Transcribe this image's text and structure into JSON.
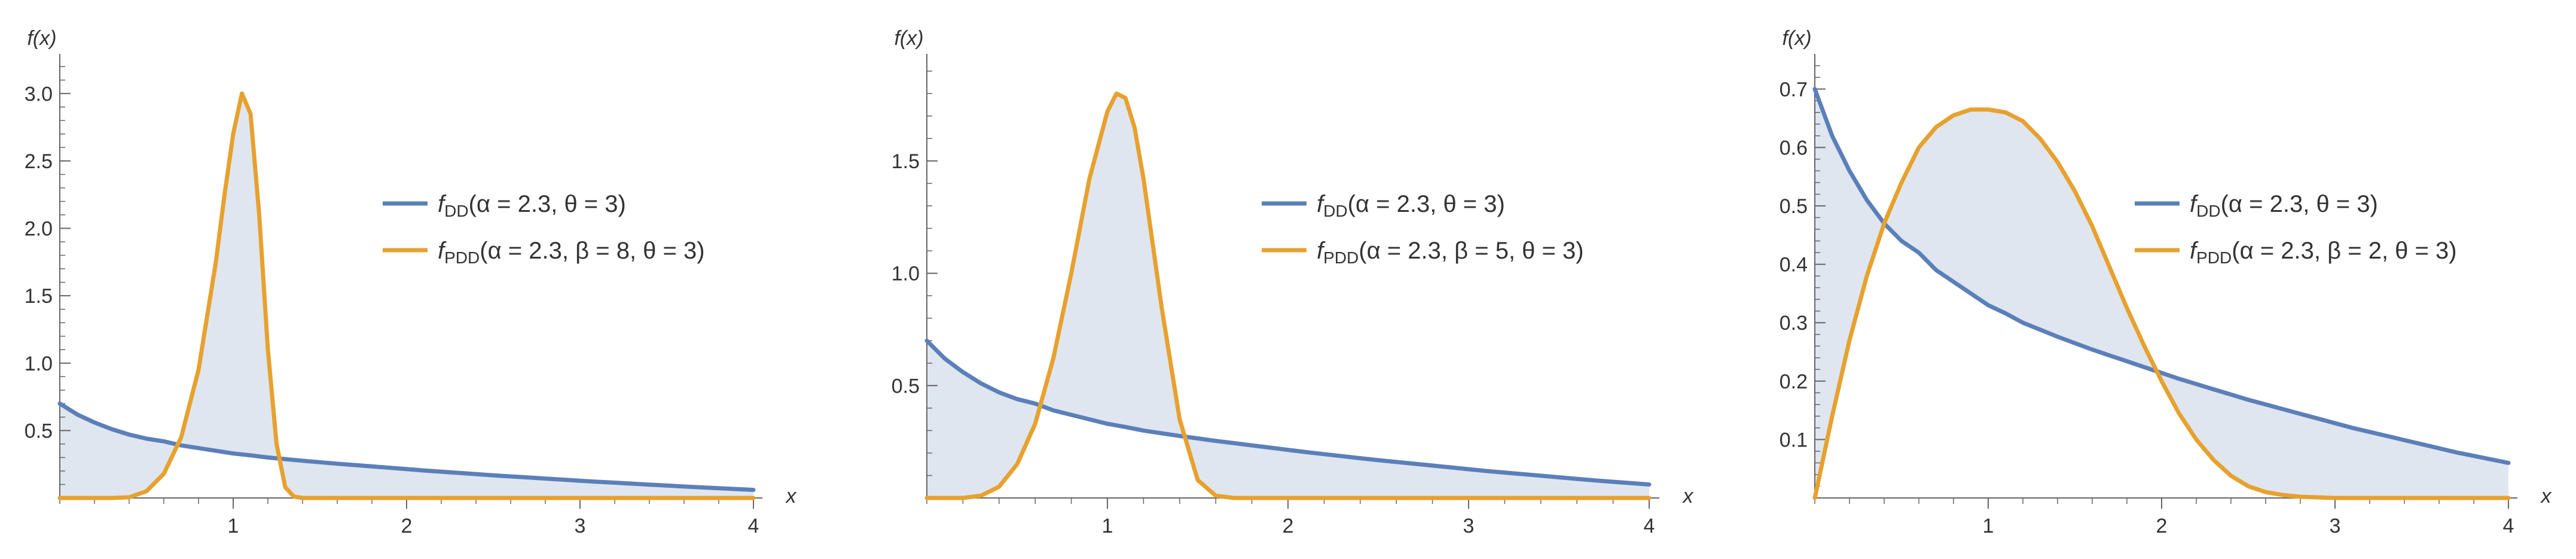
{
  "colors": {
    "dd": "#5b7fb9",
    "pdd": "#e7a12e",
    "fill": "#dfe6f0",
    "axis": "#666666"
  },
  "chart_data": [
    {
      "type": "line",
      "xlabel": "x",
      "ylabel": "f(x)",
      "xlim": [
        0,
        4.2
      ],
      "ylim": [
        0,
        3.25
      ],
      "xticks": [
        1,
        2,
        3,
        4
      ],
      "xtick_labels": [
        "1",
        "2",
        "3",
        "4"
      ],
      "yticks": [
        0.5,
        1.0,
        1.5,
        2.0,
        2.5,
        3.0
      ],
      "ytick_labels": [
        "0.5",
        "1.0",
        "1.5",
        "2.0",
        "2.5",
        "3.0"
      ],
      "legend_position": "center-right",
      "filling": "between-curves",
      "series": [
        {
          "name": "f_DD(α = 2.3, θ = 3)",
          "legend": {
            "f": "f",
            "sub": "DD",
            "args": "(α = 2.3, θ = 3)"
          },
          "color": "#5b7fb9",
          "x": [
            0,
            0.1,
            0.2,
            0.3,
            0.4,
            0.5,
            0.6,
            0.7,
            0.8,
            0.9,
            1.0,
            1.1,
            1.2,
            1.3,
            1.4,
            1.5,
            1.6,
            1.7,
            1.8,
            1.9,
            2.0,
            2.1,
            2.2,
            2.3,
            2.4,
            2.5,
            2.6,
            2.7,
            2.8,
            2.9,
            3.0,
            3.1,
            3.2,
            3.3,
            3.4,
            3.5,
            3.6,
            3.7,
            3.8,
            3.9,
            4.0
          ],
          "y": [
            0.7,
            0.62,
            0.56,
            0.51,
            0.47,
            0.44,
            0.42,
            0.39,
            0.37,
            0.35,
            0.33,
            0.316,
            0.3,
            0.288,
            0.276,
            0.265,
            0.254,
            0.244,
            0.234,
            0.224,
            0.214,
            0.204,
            0.195,
            0.186,
            0.177,
            0.168,
            0.16,
            0.152,
            0.144,
            0.136,
            0.128,
            0.12,
            0.113,
            0.106,
            0.099,
            0.092,
            0.085,
            0.078,
            0.072,
            0.066,
            0.06
          ]
        },
        {
          "name": "f_PDD(α = 2.3, β = 8, θ = 3)",
          "legend": {
            "f": "f",
            "sub": "PDD",
            "args": "(α = 2.3, β = 8, θ = 3)"
          },
          "color": "#e7a12e",
          "x": [
            0,
            0.3,
            0.4,
            0.5,
            0.6,
            0.7,
            0.8,
            0.9,
            0.95,
            1.0,
            1.05,
            1.1,
            1.15,
            1.2,
            1.25,
            1.3,
            1.35,
            1.4,
            1.5,
            2.0,
            3.0,
            4.0
          ],
          "y": [
            0,
            0,
            0.005,
            0.05,
            0.18,
            0.45,
            0.95,
            1.75,
            2.25,
            2.7,
            3.0,
            2.85,
            2.1,
            1.1,
            0.4,
            0.08,
            0.01,
            0,
            0,
            0,
            0,
            0
          ]
        }
      ]
    },
    {
      "type": "line",
      "xlabel": "x",
      "ylabel": "f(x)",
      "xlim": [
        0,
        4.2
      ],
      "ylim": [
        0,
        1.95
      ],
      "xticks": [
        1,
        2,
        3,
        4
      ],
      "xtick_labels": [
        "1",
        "2",
        "3",
        "4"
      ],
      "yticks": [
        0.5,
        1.0,
        1.5
      ],
      "ytick_labels": [
        "0.5",
        "1.0",
        "1.5"
      ],
      "legend_position": "center-right",
      "filling": "between-curves",
      "series": [
        {
          "name": "f_DD(α = 2.3, θ = 3)",
          "legend": {
            "f": "f",
            "sub": "DD",
            "args": "(α = 2.3, θ = 3)"
          },
          "color": "#5b7fb9",
          "x": [
            0,
            0.1,
            0.2,
            0.3,
            0.4,
            0.5,
            0.6,
            0.7,
            0.8,
            0.9,
            1.0,
            1.1,
            1.2,
            1.3,
            1.4,
            1.5,
            1.6,
            1.7,
            1.8,
            1.9,
            2.0,
            2.1,
            2.2,
            2.3,
            2.4,
            2.5,
            2.6,
            2.7,
            2.8,
            2.9,
            3.0,
            3.1,
            3.2,
            3.3,
            3.4,
            3.5,
            3.6,
            3.7,
            3.8,
            3.9,
            4.0
          ],
          "y": [
            0.7,
            0.62,
            0.56,
            0.51,
            0.47,
            0.44,
            0.42,
            0.39,
            0.37,
            0.35,
            0.33,
            0.316,
            0.3,
            0.288,
            0.276,
            0.265,
            0.254,
            0.244,
            0.234,
            0.224,
            0.214,
            0.204,
            0.195,
            0.186,
            0.177,
            0.168,
            0.16,
            0.152,
            0.144,
            0.136,
            0.128,
            0.12,
            0.113,
            0.106,
            0.099,
            0.092,
            0.085,
            0.078,
            0.072,
            0.066,
            0.06
          ]
        },
        {
          "name": "f_PDD(α = 2.3, β = 5, θ = 3)",
          "legend": {
            "f": "f",
            "sub": "PDD",
            "args": "(α = 2.3, β = 5, θ = 3)"
          },
          "color": "#e7a12e",
          "x": [
            0,
            0.2,
            0.3,
            0.4,
            0.5,
            0.6,
            0.7,
            0.8,
            0.9,
            1.0,
            1.05,
            1.1,
            1.15,
            1.2,
            1.3,
            1.4,
            1.5,
            1.6,
            1.7,
            2.0,
            3.0,
            4.0
          ],
          "y": [
            0,
            0,
            0.01,
            0.05,
            0.15,
            0.33,
            0.62,
            1.0,
            1.42,
            1.72,
            1.8,
            1.78,
            1.65,
            1.42,
            0.85,
            0.35,
            0.08,
            0.01,
            0,
            0,
            0,
            0
          ]
        }
      ]
    },
    {
      "type": "line",
      "xlabel": "x",
      "ylabel": "f(x)",
      "xlim": [
        0,
        4.2
      ],
      "ylim": [
        0,
        0.75
      ],
      "xticks": [
        1,
        2,
        3,
        4
      ],
      "xtick_labels": [
        "1",
        "2",
        "3",
        "4"
      ],
      "yticks": [
        0.1,
        0.2,
        0.3,
        0.4,
        0.5,
        0.6,
        0.7
      ],
      "ytick_labels": [
        "0.1",
        "0.2",
        "0.3",
        "0.4",
        "0.5",
        "0.6",
        "0.7"
      ],
      "legend_position": "center-right",
      "filling": "between-curves",
      "series": [
        {
          "name": "f_DD(α = 2.3, θ = 3)",
          "legend": {
            "f": "f",
            "sub": "DD",
            "args": "(α = 2.3, θ = 3)"
          },
          "color": "#5b7fb9",
          "x": [
            0,
            0.1,
            0.2,
            0.3,
            0.4,
            0.5,
            0.6,
            0.7,
            0.8,
            0.9,
            1.0,
            1.1,
            1.2,
            1.3,
            1.4,
            1.5,
            1.6,
            1.7,
            1.8,
            1.9,
            2.0,
            2.1,
            2.2,
            2.3,
            2.4,
            2.5,
            2.6,
            2.7,
            2.8,
            2.9,
            3.0,
            3.1,
            3.2,
            3.3,
            3.4,
            3.5,
            3.6,
            3.7,
            3.8,
            3.9,
            4.0
          ],
          "y": [
            0.7,
            0.62,
            0.56,
            0.51,
            0.47,
            0.44,
            0.42,
            0.39,
            0.37,
            0.35,
            0.33,
            0.316,
            0.3,
            0.288,
            0.276,
            0.265,
            0.254,
            0.244,
            0.234,
            0.224,
            0.214,
            0.204,
            0.195,
            0.186,
            0.177,
            0.168,
            0.16,
            0.152,
            0.144,
            0.136,
            0.128,
            0.12,
            0.113,
            0.106,
            0.099,
            0.092,
            0.085,
            0.078,
            0.072,
            0.066,
            0.06
          ]
        },
        {
          "name": "f_PDD(α = 2.3, β = 2, θ = 3)",
          "legend": {
            "f": "f",
            "sub": "PDD",
            "args": "(α = 2.3, β = 2, θ = 3)"
          },
          "color": "#e7a12e",
          "x": [
            0,
            0.1,
            0.2,
            0.3,
            0.4,
            0.5,
            0.6,
            0.7,
            0.8,
            0.9,
            1.0,
            1.1,
            1.2,
            1.3,
            1.4,
            1.5,
            1.6,
            1.7,
            1.8,
            1.9,
            2.0,
            2.1,
            2.2,
            2.3,
            2.4,
            2.5,
            2.6,
            2.7,
            2.8,
            2.9,
            3.0,
            3.5,
            4.0
          ],
          "y": [
            0,
            0.14,
            0.27,
            0.38,
            0.47,
            0.54,
            0.6,
            0.635,
            0.655,
            0.665,
            0.665,
            0.66,
            0.645,
            0.615,
            0.575,
            0.525,
            0.465,
            0.395,
            0.325,
            0.26,
            0.2,
            0.145,
            0.1,
            0.065,
            0.038,
            0.02,
            0.01,
            0.005,
            0.002,
            0.001,
            0,
            0,
            0
          ]
        }
      ]
    }
  ]
}
